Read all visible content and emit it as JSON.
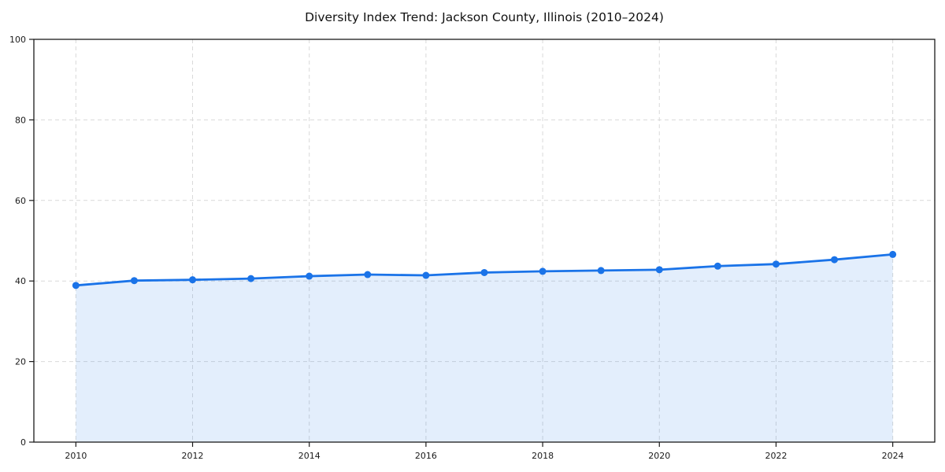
{
  "chart": {
    "title": "Diversity Index Trend: Jackson County, Illinois (2010–2024)"
  },
  "chart_data": {
    "type": "line",
    "title": "Diversity Index Trend: Jackson County, Illinois (2010–2024)",
    "x": [
      2010,
      2011,
      2012,
      2013,
      2014,
      2015,
      2016,
      2017,
      2018,
      2019,
      2020,
      2021,
      2022,
      2023,
      2024
    ],
    "series": [
      {
        "name": "Diversity Index",
        "values": [
          38.9,
          40.1,
          40.3,
          40.6,
          41.2,
          41.6,
          41.4,
          42.1,
          42.4,
          42.6,
          42.8,
          43.7,
          44.2,
          45.3,
          46.6
        ]
      }
    ],
    "xlabel": "",
    "ylabel": "",
    "xlim": [
      2009.28,
      2024.72
    ],
    "ylim": [
      0,
      100
    ],
    "x_ticks": [
      2010,
      2012,
      2014,
      2016,
      2018,
      2020,
      2022,
      2024
    ],
    "y_ticks": [
      0,
      20,
      40,
      60,
      80,
      100
    ],
    "grid": true,
    "grid_style": "dashed",
    "legend": "none",
    "marker": "circle",
    "area_fill": true,
    "colors": {
      "line": "#1a73e8",
      "marker": "#1a73e8",
      "fill": "rgba(26,115,232,0.12)",
      "grid": "#d9d9d9",
      "spine": "#1a1a1a",
      "tick_text": "#1a1a1a",
      "title_text": "#111111"
    }
  }
}
